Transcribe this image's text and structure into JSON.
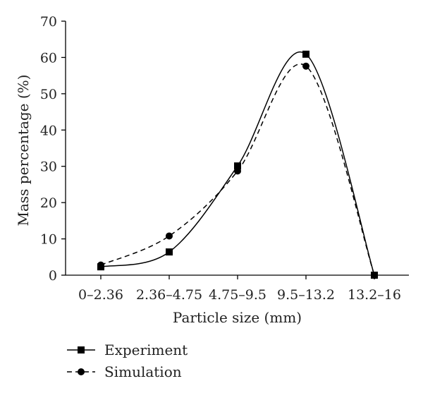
{
  "chart_data": {
    "type": "line",
    "categories": [
      "0–2.36",
      "2.36–4.75",
      "4.75–9.5",
      "9.5–13.2",
      "13.2–16"
    ],
    "xlabel": "Particle size (mm)",
    "ylabel": "Mass percentage (%)",
    "ylim": [
      0,
      70
    ],
    "yticks": [
      0,
      10,
      20,
      30,
      40,
      50,
      60,
      70
    ],
    "grid": false,
    "legend_position": "bottom-left",
    "series": [
      {
        "name": "Experiment",
        "values": [
          2.3,
          6.4,
          30.1,
          60.9,
          0.0
        ],
        "line_style": "solid",
        "marker": "square",
        "color": "#000000"
      },
      {
        "name": "Simulation",
        "values": [
          2.8,
          10.8,
          28.7,
          57.6,
          0.0
        ],
        "line_style": "dashed",
        "marker": "circle",
        "color": "#000000"
      }
    ]
  }
}
